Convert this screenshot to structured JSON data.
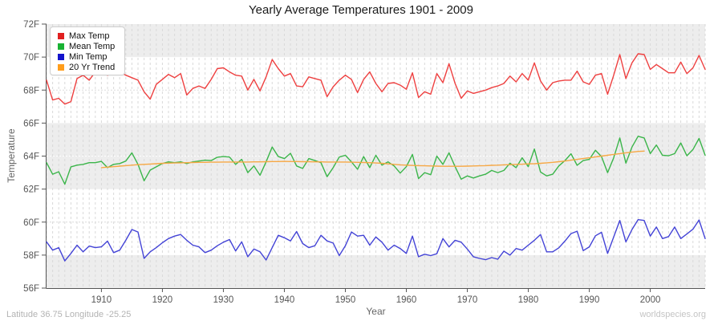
{
  "title": "Yearly Average Temperatures 1901 - 2009",
  "y_axis": {
    "label": "Temperature",
    "ticks": [
      {
        "value": 72,
        "label": "72F"
      },
      {
        "value": 70,
        "label": "70F"
      },
      {
        "value": 68,
        "label": "68F"
      },
      {
        "value": 66,
        "label": "66F"
      },
      {
        "value": 64,
        "label": "64F"
      },
      {
        "value": 62,
        "label": "62F"
      },
      {
        "value": 60,
        "label": "60F"
      },
      {
        "value": 58,
        "label": "58F"
      },
      {
        "value": 56,
        "label": "56F"
      }
    ]
  },
  "x_axis": {
    "label": "Year",
    "ticks": [
      {
        "value": 1910,
        "label": "1910"
      },
      {
        "value": 1920,
        "label": "1920"
      },
      {
        "value": 1930,
        "label": "1930"
      },
      {
        "value": 1940,
        "label": "1940"
      },
      {
        "value": 1950,
        "label": "1950"
      },
      {
        "value": 1960,
        "label": "1960"
      },
      {
        "value": 1970,
        "label": "1970"
      },
      {
        "value": 1980,
        "label": "1980"
      },
      {
        "value": 1990,
        "label": "1990"
      },
      {
        "value": 2000,
        "label": "2000"
      }
    ]
  },
  "legend": {
    "items": [
      {
        "label": "Max Temp",
        "color": "#e02020"
      },
      {
        "label": "Mean Temp",
        "color": "#19b233"
      },
      {
        "label": "Min Temp",
        "color": "#1414cc"
      },
      {
        "label": "20 Yr Trend",
        "color": "#ff9d1c"
      }
    ]
  },
  "footer": {
    "left": "Latitude 36.75 Longitude -25.25",
    "right": "worldspecies.org"
  },
  "chart_data": {
    "type": "line",
    "title": "Yearly Average Temperatures 1901 - 2009",
    "xlabel": "Year",
    "ylabel": "Temperature",
    "x_range": {
      "start": 1901,
      "end": 2009
    },
    "y_range": {
      "min": 56,
      "max": 72
    },
    "y_unit": "F",
    "layout": {
      "band_color": "#ededed",
      "band_ranges": [
        [
          72,
          70
        ],
        [
          66,
          62
        ],
        [
          58,
          56
        ]
      ],
      "vgrid_color": "#d9d9d9",
      "hgrid_color": "#dcdcdc",
      "hgrid_on_band_color": "#ffffff",
      "axis_color": "#555555",
      "legend_position": "top-left",
      "grid": true
    },
    "series": [
      {
        "name": "Max Temp",
        "color": "#ee4040",
        "x_start": 1901,
        "values": [
          68.6,
          67.4,
          67.5,
          67.15,
          67.3,
          68.7,
          68.9,
          68.6,
          69.1,
          69.05,
          68.9,
          69.0,
          69.1,
          68.9,
          68.75,
          68.6,
          67.9,
          67.45,
          68.35,
          68.65,
          68.95,
          68.75,
          69.0,
          67.7,
          68.1,
          68.25,
          68.1,
          68.65,
          69.3,
          69.35,
          69.1,
          68.9,
          68.85,
          68.0,
          68.65,
          67.95,
          68.8,
          69.85,
          69.3,
          68.85,
          69.0,
          68.25,
          68.2,
          68.8,
          68.7,
          68.6,
          67.6,
          68.2,
          68.6,
          68.9,
          68.65,
          67.85,
          68.65,
          69.1,
          68.4,
          67.9,
          68.4,
          68.45,
          68.3,
          68.05,
          69.05,
          67.55,
          67.9,
          67.75,
          69.0,
          68.45,
          69.6,
          68.4,
          67.5,
          67.95,
          67.8,
          67.9,
          68.0,
          68.15,
          68.25,
          68.4,
          68.85,
          68.5,
          69.0,
          68.6,
          69.65,
          68.55,
          68.0,
          68.45,
          68.55,
          68.6,
          68.6,
          69.15,
          68.5,
          68.35,
          68.9,
          69.0,
          67.75,
          68.9,
          70.15,
          68.7,
          69.65,
          70.2,
          70.15,
          69.25,
          69.55,
          69.3,
          69.05,
          69.05,
          69.7,
          69.0,
          69.35,
          70.1,
          69.25
        ]
      },
      {
        "name": "Mean Temp",
        "color": "#3bb54a",
        "x_start": 1901,
        "values": [
          63.6,
          62.9,
          63.05,
          62.3,
          63.35,
          63.45,
          63.5,
          63.6,
          63.6,
          63.68,
          63.3,
          63.5,
          63.55,
          63.7,
          64.2,
          63.5,
          62.5,
          63.15,
          63.35,
          63.55,
          63.65,
          63.6,
          63.65,
          63.55,
          63.65,
          63.7,
          63.75,
          63.73,
          63.93,
          63.97,
          63.94,
          63.5,
          63.8,
          63.0,
          63.4,
          62.84,
          63.65,
          64.55,
          63.97,
          63.85,
          64.17,
          63.4,
          63.25,
          63.85,
          63.73,
          63.6,
          62.75,
          63.3,
          63.94,
          64.05,
          63.65,
          63.2,
          63.97,
          63.3,
          64.05,
          63.45,
          63.65,
          63.4,
          62.97,
          63.36,
          64.1,
          62.64,
          63.0,
          62.87,
          64.0,
          63.5,
          64.2,
          63.36,
          62.6,
          62.8,
          62.67,
          62.8,
          62.9,
          63.13,
          63.0,
          63.13,
          63.57,
          63.3,
          63.9,
          63.36,
          64.43,
          63.03,
          62.8,
          62.9,
          63.4,
          63.73,
          64.14,
          63.44,
          63.73,
          63.8,
          64.35,
          63.97,
          63.0,
          63.9,
          65.1,
          63.57,
          64.55,
          65.2,
          65.1,
          64.15,
          64.67,
          64.05,
          64.02,
          64.15,
          64.8,
          64.02,
          64.4,
          65.07,
          64.05
        ]
      },
      {
        "name": "Min Temp",
        "color": "#4343d6",
        "x_start": 1901,
        "values": [
          58.8,
          58.3,
          58.45,
          57.65,
          58.1,
          58.6,
          58.2,
          58.55,
          58.45,
          58.5,
          58.85,
          58.15,
          58.3,
          58.9,
          59.55,
          59.4,
          57.8,
          58.2,
          58.45,
          58.75,
          59.0,
          59.15,
          59.25,
          58.9,
          58.6,
          58.5,
          58.15,
          58.3,
          58.57,
          58.78,
          58.94,
          58.25,
          58.8,
          57.9,
          58.37,
          58.2,
          57.7,
          58.45,
          59.2,
          59.05,
          58.86,
          59.43,
          58.7,
          58.45,
          58.57,
          59.2,
          58.86,
          58.73,
          57.97,
          58.57,
          59.4,
          59.15,
          59.2,
          58.6,
          59.1,
          58.78,
          58.3,
          58.6,
          58.4,
          58.1,
          59.15,
          57.9,
          58.05,
          57.97,
          58.08,
          59.0,
          58.5,
          58.9,
          58.78,
          58.37,
          57.9,
          57.8,
          57.72,
          57.85,
          57.75,
          58.24,
          58.0,
          58.4,
          58.3,
          58.6,
          58.9,
          59.25,
          58.2,
          58.2,
          58.44,
          58.85,
          59.3,
          59.45,
          58.27,
          58.5,
          59.17,
          59.38,
          58.1,
          59.1,
          60.1,
          58.8,
          59.55,
          60.15,
          60.1,
          59.15,
          59.7,
          59.0,
          59.12,
          59.7,
          59.0,
          59.28,
          59.57,
          60.13,
          59.0
        ]
      },
      {
        "name": "20 Yr Trend",
        "color": "#f7a844",
        "x_start": 1910,
        "values": [
          63.3,
          63.33,
          63.36,
          63.39,
          63.42,
          63.45,
          63.48,
          63.5,
          63.52,
          63.54,
          63.56,
          63.57,
          63.58,
          63.59,
          63.6,
          63.61,
          63.62,
          63.62,
          63.63,
          63.63,
          63.64,
          63.64,
          63.64,
          63.64,
          63.64,
          63.65,
          63.65,
          63.66,
          63.67,
          63.67,
          63.68,
          63.67,
          63.67,
          63.66,
          63.66,
          63.65,
          63.65,
          63.64,
          63.64,
          63.64,
          63.64,
          63.63,
          63.62,
          63.61,
          63.6,
          63.58,
          63.56,
          63.53,
          63.5,
          63.47,
          63.45,
          63.43,
          63.42,
          63.41,
          63.4,
          63.39,
          63.38,
          63.38,
          63.38,
          63.38,
          63.39,
          63.4,
          63.41,
          63.42,
          63.44,
          63.45,
          63.47,
          63.48,
          63.5,
          63.51,
          63.53,
          63.54,
          63.56,
          63.59,
          63.62,
          63.66,
          63.7,
          63.75,
          63.8,
          63.85,
          63.9,
          63.95,
          64.0,
          64.05,
          64.1,
          64.15,
          64.2,
          64.24,
          64.28,
          64.3
        ]
      }
    ]
  }
}
